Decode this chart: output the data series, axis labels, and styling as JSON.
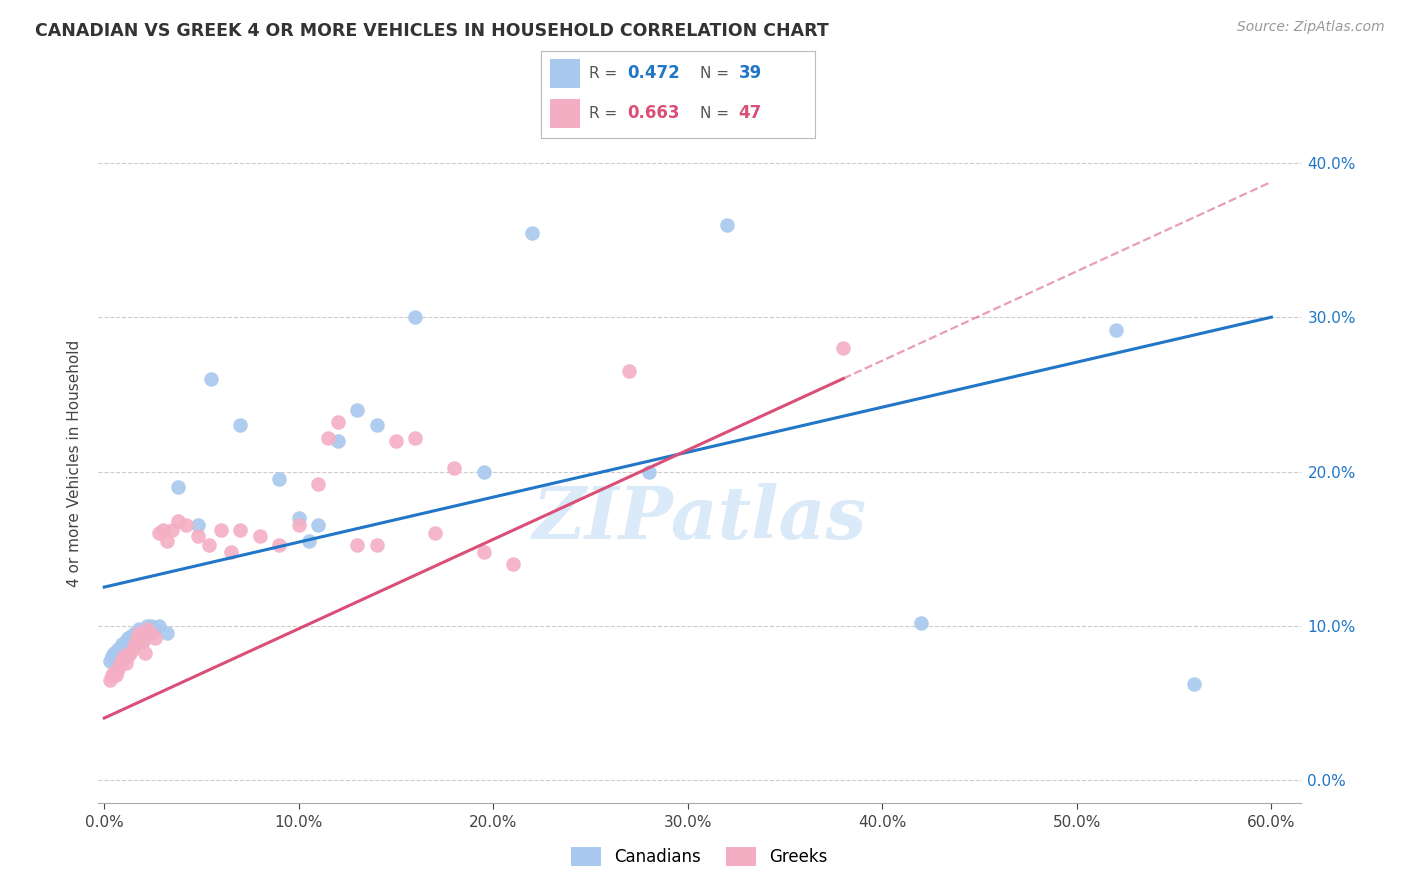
{
  "title": "CANADIAN VS GREEK 4 OR MORE VEHICLES IN HOUSEHOLD CORRELATION CHART",
  "source": "Source: ZipAtlas.com",
  "ylabel_label": "4 or more Vehicles in Household",
  "xlim": [
    -0.003,
    0.615
  ],
  "ylim": [
    -0.015,
    0.425
  ],
  "ytick_positions": [
    0.0,
    0.1,
    0.2,
    0.3,
    0.4
  ],
  "xtick_positions": [
    0.0,
    0.1,
    0.2,
    0.3,
    0.4,
    0.5,
    0.6
  ],
  "canadian_R": 0.472,
  "canadian_N": 39,
  "greek_R": 0.663,
  "greek_N": 47,
  "canadian_color": "#a8c8ee",
  "greek_color": "#f4aec4",
  "canadian_line_color": "#2176c7",
  "greek_line_color": "#d94f78",
  "watermark_color": "#daeaf8",
  "background_color": "#ffffff",
  "grid_color": "#cccccc",
  "canadian_x": [
    0.003,
    0.004,
    0.005,
    0.006,
    0.007,
    0.008,
    0.009,
    0.01,
    0.011,
    0.012,
    0.013,
    0.014,
    0.016,
    0.018,
    0.02,
    0.022,
    0.024,
    0.026,
    0.028,
    0.032,
    0.038,
    0.048,
    0.055,
    0.07,
    0.09,
    0.1,
    0.105,
    0.11,
    0.12,
    0.13,
    0.14,
    0.16,
    0.195,
    0.22,
    0.28,
    0.32,
    0.42,
    0.52,
    0.56
  ],
  "canadian_y": [
    0.077,
    0.08,
    0.082,
    0.08,
    0.085,
    0.083,
    0.088,
    0.085,
    0.09,
    0.092,
    0.088,
    0.093,
    0.095,
    0.098,
    0.09,
    0.1,
    0.1,
    0.098,
    0.1,
    0.095,
    0.19,
    0.165,
    0.26,
    0.23,
    0.195,
    0.17,
    0.155,
    0.165,
    0.22,
    0.24,
    0.23,
    0.3,
    0.2,
    0.355,
    0.2,
    0.36,
    0.102,
    0.292,
    0.062
  ],
  "greek_x": [
    0.003,
    0.004,
    0.005,
    0.006,
    0.007,
    0.008,
    0.009,
    0.01,
    0.011,
    0.012,
    0.013,
    0.015,
    0.016,
    0.017,
    0.018,
    0.02,
    0.021,
    0.022,
    0.024,
    0.026,
    0.028,
    0.03,
    0.032,
    0.035,
    0.038,
    0.042,
    0.048,
    0.054,
    0.06,
    0.065,
    0.07,
    0.08,
    0.09,
    0.1,
    0.11,
    0.115,
    0.12,
    0.13,
    0.14,
    0.15,
    0.16,
    0.17,
    0.18,
    0.195,
    0.21,
    0.27,
    0.38
  ],
  "greek_y": [
    0.065,
    0.068,
    0.07,
    0.068,
    0.072,
    0.075,
    0.078,
    0.08,
    0.076,
    0.08,
    0.082,
    0.085,
    0.088,
    0.092,
    0.095,
    0.09,
    0.082,
    0.098,
    0.095,
    0.092,
    0.16,
    0.162,
    0.155,
    0.162,
    0.168,
    0.165,
    0.158,
    0.152,
    0.162,
    0.148,
    0.162,
    0.158,
    0.152,
    0.165,
    0.192,
    0.222,
    0.232,
    0.152,
    0.152,
    0.22,
    0.222,
    0.16,
    0.202,
    0.148,
    0.14,
    0.265,
    0.28
  ]
}
